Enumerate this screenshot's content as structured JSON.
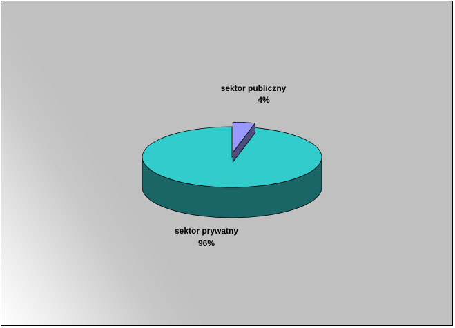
{
  "chart_data": {
    "type": "pie",
    "style": "3d-exploded",
    "slices": [
      {
        "label": "sektor prywatny",
        "value": 96,
        "display": "96%",
        "color": "#33cccc",
        "side_color": "#1a6666"
      },
      {
        "label": "sektor publiczny",
        "value": 4,
        "display": "4%",
        "color": "#9999ff",
        "side_color": "#4d4d80"
      }
    ],
    "legend": "none"
  }
}
